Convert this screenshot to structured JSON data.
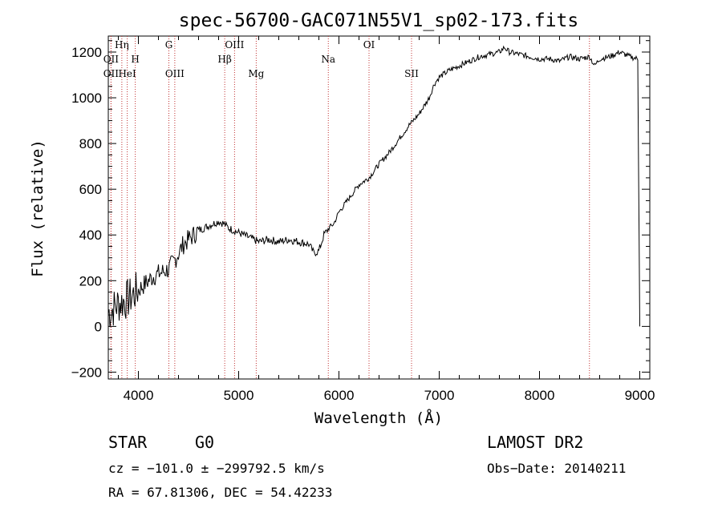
{
  "chart_data": {
    "type": "line",
    "title": "spec-56700-GAC071N55V1_sp02-173.fits",
    "xlabel": "Wavelength (Å)",
    "ylabel": "Flux (relative)",
    "xlim": [
      3700,
      9100
    ],
    "ylim": [
      -230,
      1270
    ],
    "x_ticks": [
      4000,
      5000,
      6000,
      7000,
      8000,
      9000
    ],
    "y_ticks": [
      -200,
      0,
      200,
      400,
      600,
      800,
      1000,
      1200
    ],
    "x_tick_labels": [
      "4000",
      "5000",
      "6000",
      "7000",
      "8000",
      "9000"
    ],
    "y_tick_labels": [
      "−200",
      "0",
      "200",
      "400",
      "600",
      "800",
      "1000",
      "1200"
    ],
    "grid": false,
    "line_color": "#000000",
    "marker_color": "#c03030",
    "spectrum": {
      "x": [
        3700,
        3750,
        3800,
        3850,
        3900,
        3950,
        4000,
        4050,
        4100,
        4150,
        4200,
        4250,
        4300,
        4350,
        4400,
        4450,
        4500,
        4550,
        4600,
        4700,
        4800,
        4850,
        4900,
        5000,
        5100,
        5200,
        5300,
        5400,
        5500,
        5600,
        5700,
        5750,
        5800,
        5850,
        5900,
        5950,
        6000,
        6100,
        6200,
        6300,
        6400,
        6500,
        6600,
        6700,
        6800,
        6900,
        6950,
        7000,
        7100,
        7200,
        7300,
        7400,
        7500,
        7600,
        7650,
        7700,
        7800,
        7900,
        8000,
        8100,
        8200,
        8300,
        8400,
        8500,
        8550,
        8600,
        8700,
        8800,
        8900,
        8980,
        9000
      ],
      "y": [
        60,
        80,
        100,
        110,
        120,
        140,
        160,
        180,
        200,
        220,
        230,
        240,
        250,
        280,
        320,
        360,
        380,
        400,
        420,
        440,
        460,
        450,
        430,
        410,
        390,
        370,
        380,
        370,
        380,
        370,
        360,
        320,
        330,
        400,
        430,
        450,
        500,
        560,
        620,
        650,
        710,
        760,
        820,
        880,
        930,
        1000,
        1060,
        1090,
        1120,
        1140,
        1160,
        1180,
        1190,
        1200,
        1220,
        1200,
        1190,
        1180,
        1170,
        1170,
        1160,
        1180,
        1170,
        1180,
        1140,
        1170,
        1180,
        1200,
        1180,
        1170,
        0
      ]
    },
    "lines": [
      {
        "name": "OII",
        "wavelength": 3727,
        "row": 1
      },
      {
        "name": "OII",
        "wavelength": 3727,
        "row": 2
      },
      {
        "name": "Hη",
        "wavelength": 3835,
        "row": 0
      },
      {
        "name": "HeI",
        "wavelength": 3889,
        "row": 2
      },
      {
        "name": "H",
        "wavelength": 3969,
        "row": 1
      },
      {
        "name": "G",
        "wavelength": 4304,
        "row": 0
      },
      {
        "name": "OIII",
        "wavelength": 4363,
        "row": 2
      },
      {
        "name": "Hβ",
        "wavelength": 4861,
        "row": 1
      },
      {
        "name": "OIII",
        "wavelength": 4959,
        "row": 0
      },
      {
        "name": "Mg",
        "wavelength": 5175,
        "row": 2
      },
      {
        "name": "Na",
        "wavelength": 5894,
        "row": 1
      },
      {
        "name": "OI",
        "wavelength": 6300,
        "row": 0
      },
      {
        "name": "SII",
        "wavelength": 6724,
        "row": 2
      },
      {
        "name": "",
        "wavelength": 8498,
        "row": 0
      }
    ]
  },
  "info": {
    "object_class": "STAR",
    "subclass": "G0",
    "survey": "LAMOST DR2",
    "cz": "cz = −101.0 ± −299792.5 km/s",
    "obs_date": "Obs−Date: 20140211",
    "coords": "RA =  67.81306, DEC =  54.42233"
  }
}
